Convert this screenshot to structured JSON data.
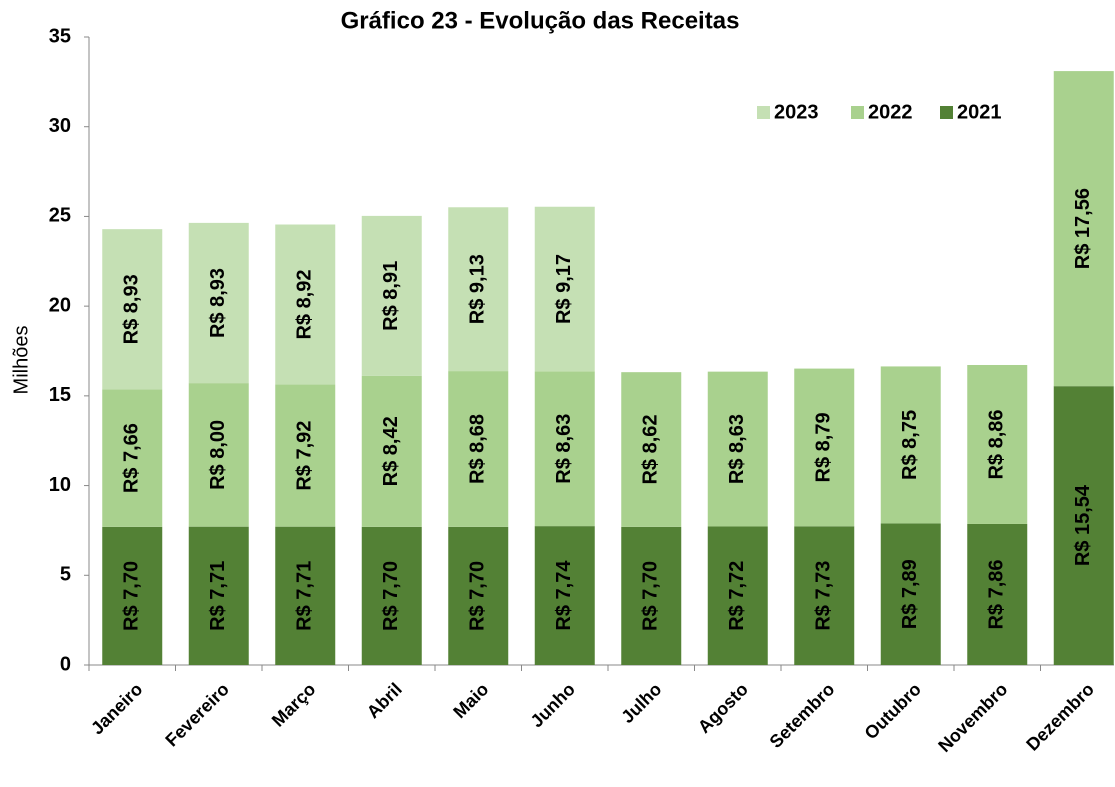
{
  "chart_data": {
    "type": "stacked_bar",
    "title": "Gráfico 23 - Evolução das Receitas",
    "y_label": "Milhões",
    "categories": [
      "Janeiro",
      "Fevereiro",
      "Março",
      "Abril",
      "Maio",
      "Junho",
      "Julho",
      "Agosto",
      "Setembro",
      "Outubro",
      "Novembro",
      "Dezembro"
    ],
    "series": [
      {
        "name": "2021",
        "color": "#538135",
        "values": [
          7.7,
          7.71,
          7.71,
          7.7,
          7.7,
          7.74,
          7.7,
          7.72,
          7.73,
          7.89,
          7.86,
          15.54
        ],
        "value_labels": [
          "R$ 7,70",
          "R$ 7,71",
          "R$ 7,71",
          "R$ 7,70",
          "R$ 7,70",
          "R$ 7,74",
          "R$ 7,70",
          "R$ 7,72",
          "R$ 7,73",
          "R$ 7,89",
          "R$ 7,86",
          "R$ 15,54"
        ]
      },
      {
        "name": "2022",
        "color": "#a9d18e",
        "values": [
          7.66,
          8.0,
          7.92,
          8.42,
          8.68,
          8.63,
          8.62,
          8.63,
          8.79,
          8.75,
          8.86,
          17.56
        ],
        "value_labels": [
          "R$ 7,66",
          "R$ 8,00",
          "R$ 7,92",
          "R$ 8,42",
          "R$ 8,68",
          "R$ 8,63",
          "R$ 8,62",
          "R$ 8,63",
          "R$ 8,79",
          "R$ 8,75",
          "R$ 8,86",
          "R$ 17,56"
        ]
      },
      {
        "name": "2023",
        "color": "#c5e0b4",
        "values": [
          8.93,
          8.93,
          8.92,
          8.91,
          9.13,
          9.17,
          null,
          null,
          null,
          null,
          null,
          null
        ],
        "value_labels": [
          "R$ 8,93",
          "R$ 8,93",
          "R$ 8,92",
          "R$ 8,91",
          "R$ 9,13",
          "R$ 9,17",
          null,
          null,
          null,
          null,
          null,
          null
        ]
      }
    ],
    "ylim": [
      0,
      35
    ],
    "yticks": [
      0,
      5,
      10,
      15,
      20,
      25,
      30,
      35
    ],
    "legend": "top-right"
  }
}
